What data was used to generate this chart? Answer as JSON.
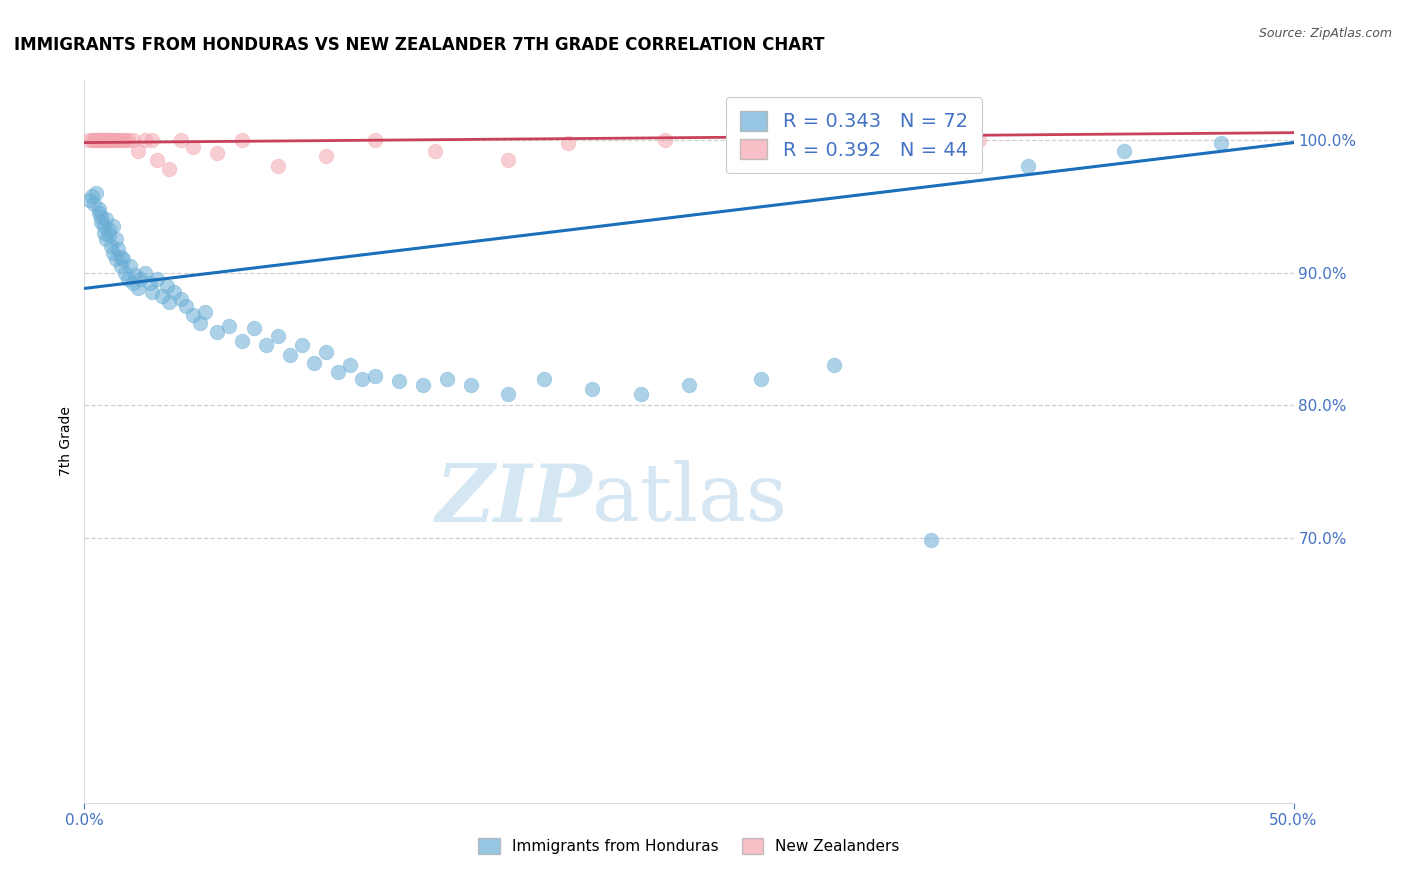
{
  "title": "IMMIGRANTS FROM HONDURAS VS NEW ZEALANDER 7TH GRADE CORRELATION CHART",
  "source": "Source: ZipAtlas.com",
  "xlabel": "",
  "ylabel": "7th Grade",
  "xlim": [
    0.0,
    0.5
  ],
  "ylim": [
    0.5,
    1.045
  ],
  "xticks": [
    0.0,
    0.5
  ],
  "xtick_labels": [
    "0.0%",
    "50.0%"
  ],
  "yticks": [
    0.7,
    0.8,
    0.9,
    1.0
  ],
  "ytick_labels": [
    "70.0%",
    "80.0%",
    "90.0%",
    "100.0%"
  ],
  "blue_color": "#6baed6",
  "pink_color": "#f4a6b0",
  "trend_blue": "#1a6fba",
  "trend_pink": "#c9405a",
  "legend_blue_R": "0.343",
  "legend_blue_N": "72",
  "legend_pink_R": "0.392",
  "legend_pink_N": "44",
  "legend_label_blue": "Immigrants from Honduras",
  "legend_label_pink": "New Zealanders",
  "watermark_zip": "ZIP",
  "watermark_atlas": "atlas",
  "blue_x": [
    0.002,
    0.003,
    0.004,
    0.005,
    0.006,
    0.006,
    0.007,
    0.007,
    0.008,
    0.008,
    0.009,
    0.009,
    0.01,
    0.01,
    0.011,
    0.012,
    0.012,
    0.013,
    0.013,
    0.014,
    0.015,
    0.015,
    0.016,
    0.017,
    0.018,
    0.019,
    0.02,
    0.021,
    0.022,
    0.023,
    0.025,
    0.027,
    0.028,
    0.03,
    0.032,
    0.034,
    0.035,
    0.037,
    0.04,
    0.042,
    0.045,
    0.048,
    0.05,
    0.055,
    0.06,
    0.065,
    0.07,
    0.075,
    0.08,
    0.085,
    0.09,
    0.095,
    0.1,
    0.105,
    0.11,
    0.115,
    0.12,
    0.13,
    0.14,
    0.15,
    0.16,
    0.175,
    0.19,
    0.21,
    0.23,
    0.25,
    0.28,
    0.31,
    0.35,
    0.39,
    0.43,
    0.47
  ],
  "blue_y": [
    0.955,
    0.958,
    0.952,
    0.96,
    0.948,
    0.945,
    0.938,
    0.942,
    0.935,
    0.93,
    0.94,
    0.925,
    0.932,
    0.928,
    0.92,
    0.935,
    0.915,
    0.925,
    0.91,
    0.918,
    0.912,
    0.905,
    0.91,
    0.9,
    0.895,
    0.905,
    0.892,
    0.898,
    0.888,
    0.895,
    0.9,
    0.892,
    0.885,
    0.895,
    0.882,
    0.89,
    0.878,
    0.885,
    0.88,
    0.875,
    0.868,
    0.862,
    0.87,
    0.855,
    0.86,
    0.848,
    0.858,
    0.845,
    0.852,
    0.838,
    0.845,
    0.832,
    0.84,
    0.825,
    0.83,
    0.82,
    0.822,
    0.818,
    0.815,
    0.82,
    0.815,
    0.808,
    0.82,
    0.812,
    0.808,
    0.815,
    0.82,
    0.83,
    0.698,
    0.98,
    0.992,
    0.998
  ],
  "pink_x": [
    0.002,
    0.003,
    0.004,
    0.005,
    0.005,
    0.006,
    0.006,
    0.007,
    0.007,
    0.008,
    0.008,
    0.009,
    0.009,
    0.01,
    0.01,
    0.011,
    0.012,
    0.012,
    0.013,
    0.014,
    0.015,
    0.016,
    0.017,
    0.018,
    0.02,
    0.022,
    0.025,
    0.028,
    0.03,
    0.035,
    0.04,
    0.045,
    0.055,
    0.065,
    0.08,
    0.1,
    0.12,
    0.145,
    0.175,
    0.2,
    0.24,
    0.28,
    0.32,
    0.37
  ],
  "pink_y": [
    1.0,
    1.0,
    1.0,
    1.0,
    1.0,
    1.0,
    1.0,
    1.0,
    1.0,
    1.0,
    1.0,
    1.0,
    1.0,
    1.0,
    1.0,
    1.0,
    1.0,
    1.0,
    1.0,
    1.0,
    1.0,
    1.0,
    1.0,
    1.0,
    1.0,
    0.992,
    1.0,
    1.0,
    0.985,
    0.978,
    1.0,
    0.995,
    0.99,
    1.0,
    0.98,
    0.988,
    1.0,
    0.992,
    0.985,
    0.998,
    1.0,
    0.99,
    1.0,
    1.0
  ]
}
